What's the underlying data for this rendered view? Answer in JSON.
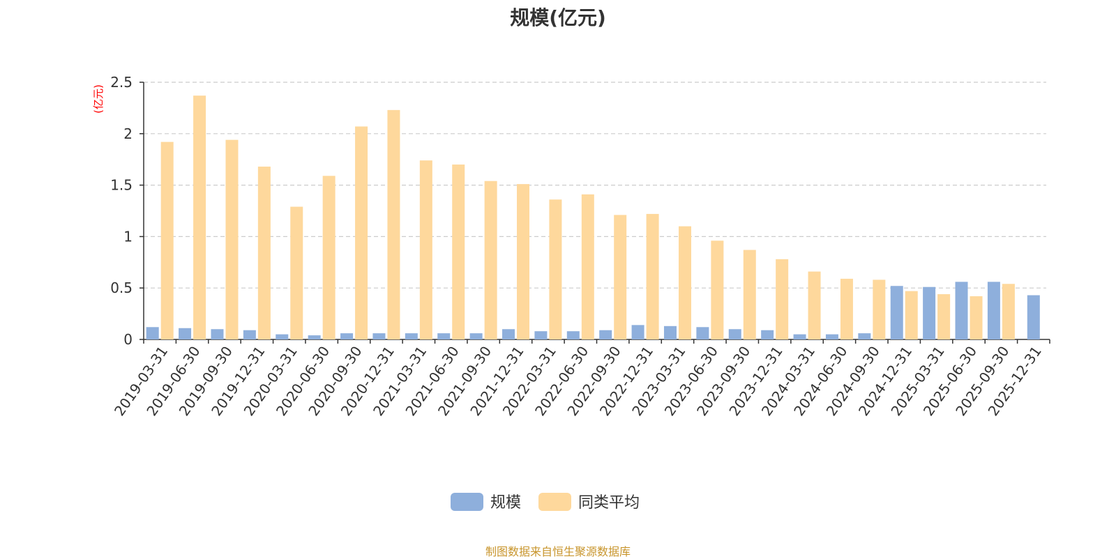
{
  "title": "规模(亿元)",
  "source": "制图数据来自恒生聚源数据库",
  "colors": {
    "scale": "#8eafdc",
    "avg": "#fed89c",
    "ylabel": "#ff0000",
    "axis": "#333333",
    "grid": "#cccccc"
  },
  "chart_data": {
    "type": "bar",
    "title": "规模(亿元)",
    "ylabel": "(亿元)",
    "xlabel": "",
    "ylim": [
      0,
      2.5
    ],
    "yticks": [
      "0",
      "0.5",
      "1",
      "1.5",
      "2",
      "2.5"
    ],
    "grid": true,
    "legend_position": "bottom-center",
    "categories": [
      "2019-03-31",
      "2019-06-30",
      "2019-09-30",
      "2019-12-31",
      "2020-03-31",
      "2020-06-30",
      "2020-09-30",
      "2020-12-31",
      "2021-03-31",
      "2021-06-30",
      "2021-09-30",
      "2021-12-31",
      "2022-03-31",
      "2022-06-30",
      "2022-09-30",
      "2022-12-31",
      "2023-03-31",
      "2023-06-30",
      "2023-09-30",
      "2023-12-31",
      "2024-03-31",
      "2024-06-30",
      "2024-09-30",
      "2024-12-31",
      "2025-03-31",
      "2025-06-30",
      "2025-09-30",
      "2025-12-31"
    ],
    "series": [
      {
        "name": "规模",
        "values": [
          0.12,
          0.11,
          0.1,
          0.09,
          0.05,
          0.04,
          0.06,
          0.06,
          0.06,
          0.06,
          0.06,
          0.1,
          0.08,
          0.08,
          0.09,
          0.14,
          0.13,
          0.12,
          0.1,
          0.09,
          0.05,
          0.05,
          0.06,
          0.52,
          0.51,
          0.56,
          0.56,
          0.43
        ]
      },
      {
        "name": "同类平均",
        "values": [
          1.92,
          2.37,
          1.94,
          1.68,
          1.29,
          1.59,
          2.07,
          2.23,
          1.74,
          1.7,
          1.54,
          1.51,
          1.36,
          1.41,
          1.21,
          1.22,
          1.1,
          0.96,
          0.87,
          0.78,
          0.66,
          0.59,
          0.58,
          0.47,
          0.44,
          0.42,
          0.54,
          null
        ]
      }
    ]
  }
}
